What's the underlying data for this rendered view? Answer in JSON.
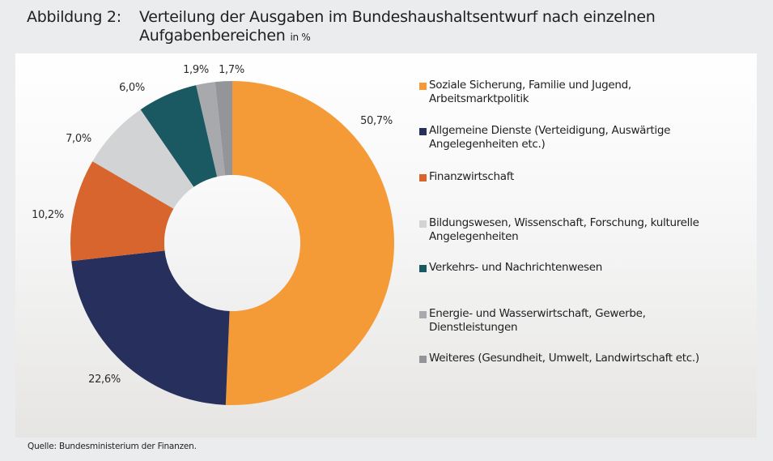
{
  "header": {
    "figure_label": "Abbildung 2:",
    "title": "Verteilung der Ausgaben im Bundeshaushaltsentwurf nach einzelnen Aufgabenbereichen",
    "unit": "in %"
  },
  "chart_data": {
    "type": "pie",
    "subtype": "donut",
    "title": "Verteilung der Ausgaben im Bundeshaushaltsentwurf nach einzelnen Aufgabenbereichen",
    "unit": "in %",
    "legend_position": "right",
    "start": "top, clockwise",
    "slices": [
      {
        "name": "Soziale Sicherung, Familie und Jugend, Arbeitsmarktpolitik",
        "value": 50.7,
        "label": "50,7%",
        "color": "#f49b37"
      },
      {
        "name": "Allgemeine Dienste (Verteidigung, Auswärtige Angelegenheiten etc.)",
        "value": 22.6,
        "label": "22,6%",
        "color": "#27305c"
      },
      {
        "name": "Finanzwirtschaft",
        "value": 10.2,
        "label": "10,2%",
        "color": "#d9652e"
      },
      {
        "name": "Bildungswesen, Wissenschaft, Forschung, kulturelle Angelegenheiten",
        "value": 7.0,
        "label": "7,0%",
        "color": "#d1d3d4"
      },
      {
        "name": "Verkehrs- und Nachrichtenwesen",
        "value": 6.0,
        "label": "6,0%",
        "color": "#1a5961"
      },
      {
        "name": "Energie- und Wasserwirtschaft, Gewerbe, Dienstleistungen",
        "value": 1.9,
        "label": "1,9%",
        "color": "#a7a9ac"
      },
      {
        "name": "Weiteres (Gesundheit, Umwelt, Landwirtschaft etc.)",
        "value": 1.7,
        "label": "1,7%",
        "color": "#939598"
      }
    ]
  },
  "legend": {
    "items": [
      {
        "lines": [
          "Soziale Sicherung, Familie und Jugend,",
          "Arbeitsmarktpolitik"
        ],
        "color": "#f49b37"
      },
      {
        "lines": [
          "Allgemeine Dienste (Verteidigung, Auswärtige",
          "Angelegenheiten etc.)"
        ],
        "color": "#27305c"
      },
      {
        "lines": [
          "Finanzwirtschaft"
        ],
        "color": "#d9652e"
      },
      {
        "lines": [
          "Bildungswesen, Wissenschaft, Forschung, kulturelle",
          "Angelegenheiten"
        ],
        "color": "#d1d3d4"
      },
      {
        "lines": [
          "Verkehrs- und Nachrichtenwesen"
        ],
        "color": "#1a5961"
      },
      {
        "lines": [
          "Energie- und Wasserwirtschaft, Gewerbe,",
          "Dienstleistungen"
        ],
        "color": "#a7a9ac"
      },
      {
        "lines": [
          "Weiteres (Gesundheit, Umwelt, Landwirtschaft etc.)"
        ],
        "color": "#939598"
      }
    ]
  },
  "footer": {
    "source": "Quelle: Bundesministerium der Finanzen."
  }
}
